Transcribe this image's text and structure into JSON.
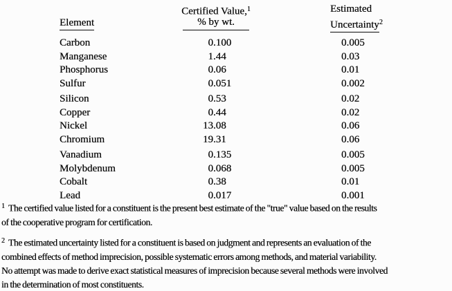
{
  "page": {
    "background_color": "#fcfcfc",
    "text_color": "#0a0a0a"
  },
  "table": {
    "headers": {
      "element": "Element",
      "certified_title": "Certified Value,",
      "certified_footnote_ref": "1",
      "certified_subtitle": "% by wt.",
      "uncertainty_title": "Estimated",
      "uncertainty_word": "Uncertainty",
      "uncertainty_footnote_ref": "2"
    },
    "groups": [
      {
        "rows": [
          {
            "element": "Carbon",
            "value": "0.100",
            "uncertainty": "0.005"
          },
          {
            "element": "Manganese",
            "value": "1.44",
            "uncertainty": "0.03"
          },
          {
            "element": "Phosphorus",
            "value": "0.06",
            "uncertainty": "0.01"
          },
          {
            "element": "Sulfur",
            "value": "0.051",
            "uncertainty": "0.002"
          }
        ]
      },
      {
        "rows": [
          {
            "element": "Silicon",
            "value": "0.53",
            "uncertainty": "0.02"
          },
          {
            "element": "Copper",
            "value": "0.44",
            "uncertainty": "0.02"
          },
          {
            "element": "Nickel",
            "value": "13.08",
            "uncertainty": "0.06"
          },
          {
            "element": "Chromium",
            "value": "19.31",
            "uncertainty": "0.06"
          }
        ]
      },
      {
        "rows": [
          {
            "element": "Vanadium",
            "value": "0.135",
            "uncertainty": "0.005"
          },
          {
            "element": "Molybdenum",
            "value": "0.068",
            "uncertainty": "0.005"
          },
          {
            "element": "Cobalt",
            "value": "0.38",
            "uncertainty": "0.01"
          },
          {
            "element": "Lead",
            "value": "0.017",
            "uncertainty": "0.001"
          }
        ]
      }
    ]
  },
  "footnotes": [
    {
      "marker": "1",
      "lines": [
        "The certified value listed for a constituent is the present best estimate of the \"true\" value based on the results",
        "of the cooperative program for certification."
      ]
    },
    {
      "marker": "2",
      "lines": [
        "The estimated uncertainty listed for a constituent is based on judgment and represents an evaluation of the",
        "combined effects of method imprecision, possible systematic errors among methods, and material variability.",
        "No attempt was made to derive exact statistical measures of imprecision because several methods were involved",
        "in the determination of most constituents."
      ]
    }
  ]
}
